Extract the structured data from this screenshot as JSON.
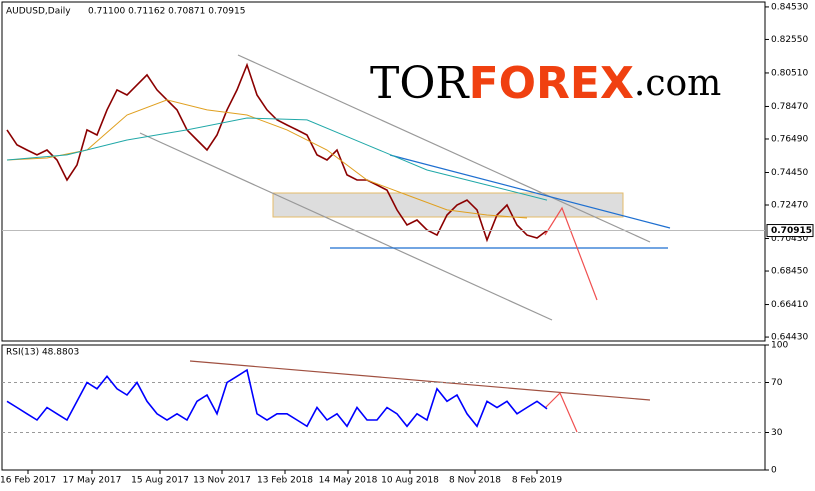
{
  "chart_data": [
    {
      "type": "line",
      "title": "AUDUSD,Daily",
      "quote": "0.71100 0.71162 0.70871 0.70915",
      "watermark": [
        "TOR",
        "FOREX",
        ".com"
      ],
      "last_price": 0.70915,
      "xlim": [
        0,
        763
      ],
      "ylim": [
        0.6419,
        0.8483
      ],
      "yticks": [
        {
          "value": 0.8453,
          "label": "0.84530"
        },
        {
          "value": 0.8255,
          "label": "0.82550"
        },
        {
          "value": 0.8051,
          "label": "0.80510"
        },
        {
          "value": 0.7847,
          "label": "0.78470"
        },
        {
          "value": 0.7649,
          "label": "0.76490"
        },
        {
          "value": 0.7445,
          "label": "0.74450"
        },
        {
          "value": 0.7247,
          "label": "0.72470"
        },
        {
          "value": 0.7043,
          "label": "0.70430"
        },
        {
          "value": 0.6845,
          "label": "0.68450"
        },
        {
          "value": 0.6641,
          "label": "0.66410"
        },
        {
          "value": 0.6443,
          "label": "0.64430"
        }
      ],
      "x": [
        5,
        15,
        25,
        35,
        45,
        55,
        65,
        75,
        85,
        95,
        105,
        115,
        125,
        135,
        145,
        155,
        165,
        175,
        185,
        195,
        205,
        215,
        225,
        235,
        245,
        255,
        265,
        275,
        285,
        295,
        305,
        315,
        325,
        335,
        345,
        355,
        365,
        375,
        385,
        395,
        405,
        415,
        425,
        435,
        445,
        455,
        465,
        475,
        485,
        495,
        505,
        515,
        525,
        535,
        545
      ],
      "series": [
        {
          "color": "#8b0000",
          "values": [
            0.7704,
            0.7613,
            0.7582,
            0.7552,
            0.7582,
            0.7521,
            0.7399,
            0.7491,
            0.7704,
            0.7673,
            0.7826,
            0.7948,
            0.7917,
            0.7978,
            0.8039,
            0.7948,
            0.7887,
            0.7826,
            0.7704,
            0.7643,
            0.7582,
            0.7673,
            0.7826,
            0.7948,
            0.81,
            0.7917,
            0.7826,
            0.7765,
            0.7734,
            0.7704,
            0.7673,
            0.7552,
            0.7521,
            0.7582,
            0.743,
            0.7399,
            0.7399,
            0.7369,
            0.7338,
            0.7217,
            0.7125,
            0.7156,
            0.7095,
            0.7064,
            0.7186,
            0.7247,
            0.7277,
            0.7217,
            0.7034,
            0.7186,
            0.7247,
            0.7125,
            0.7064,
            0.7046,
            0.70915
          ]
        },
        {
          "color": "#e0a020",
          "x": [
            5,
            45,
            85,
            125,
            165,
            205,
            245,
            285,
            325,
            365,
            405,
            445,
            485,
            525
          ],
          "values": [
            0.7521,
            0.7533,
            0.7582,
            0.7795,
            0.7887,
            0.7826,
            0.7795,
            0.7704,
            0.7582,
            0.7399,
            0.7308,
            0.7217,
            0.7186,
            0.7168
          ]
        },
        {
          "color": "#20a8a8",
          "x": [
            5,
            65,
            125,
            185,
            245,
            305,
            365,
            425,
            485,
            545
          ],
          "values": [
            0.7521,
            0.7552,
            0.7643,
            0.7704,
            0.7777,
            0.7765,
            0.7613,
            0.746,
            0.7369,
            0.7277
          ]
        }
      ]
    },
    {
      "type": "line",
      "title": "RSI(13) 48.8803",
      "xlim": [
        0,
        763
      ],
      "ylim": [
        0,
        100
      ],
      "yticks": [
        100,
        70,
        30,
        0
      ],
      "xticks": [
        {
          "value": 26,
          "label": "16 Feb 2017"
        },
        {
          "value": 90,
          "label": "17 May 2017"
        },
        {
          "value": 158,
          "label": "15 Aug 2017"
        },
        {
          "value": 220,
          "label": "13 Nov 2017"
        },
        {
          "value": 283,
          "label": "13 Feb 2018"
        },
        {
          "value": 346,
          "label": "14 May 2018"
        },
        {
          "value": 408,
          "label": "10 Aug 2018"
        },
        {
          "value": 473,
          "label": "8 Nov 2018"
        },
        {
          "value": 535,
          "label": "8 Feb 2019"
        }
      ],
      "x": [
        5,
        15,
        25,
        35,
        45,
        55,
        65,
        75,
        85,
        95,
        105,
        115,
        125,
        135,
        145,
        155,
        165,
        175,
        185,
        195,
        205,
        215,
        225,
        235,
        245,
        255,
        265,
        275,
        285,
        295,
        305,
        315,
        325,
        335,
        345,
        355,
        365,
        375,
        385,
        395,
        405,
        415,
        425,
        435,
        445,
        455,
        465,
        475,
        485,
        495,
        505,
        515,
        525,
        535,
        545
      ],
      "series": [
        {
          "color": "#0000ff",
          "values": [
            55,
            50,
            45,
            40,
            50,
            45,
            40,
            55,
            70,
            65,
            75,
            65,
            60,
            70,
            55,
            45,
            40,
            45,
            40,
            55,
            60,
            45,
            70,
            75,
            80,
            45,
            40,
            45,
            45,
            40,
            35,
            50,
            40,
            45,
            35,
            50,
            40,
            40,
            50,
            45,
            35,
            45,
            40,
            65,
            55,
            60,
            45,
            35,
            55,
            50,
            55,
            45,
            50,
            55,
            48.8803
          ]
        }
      ]
    }
  ]
}
